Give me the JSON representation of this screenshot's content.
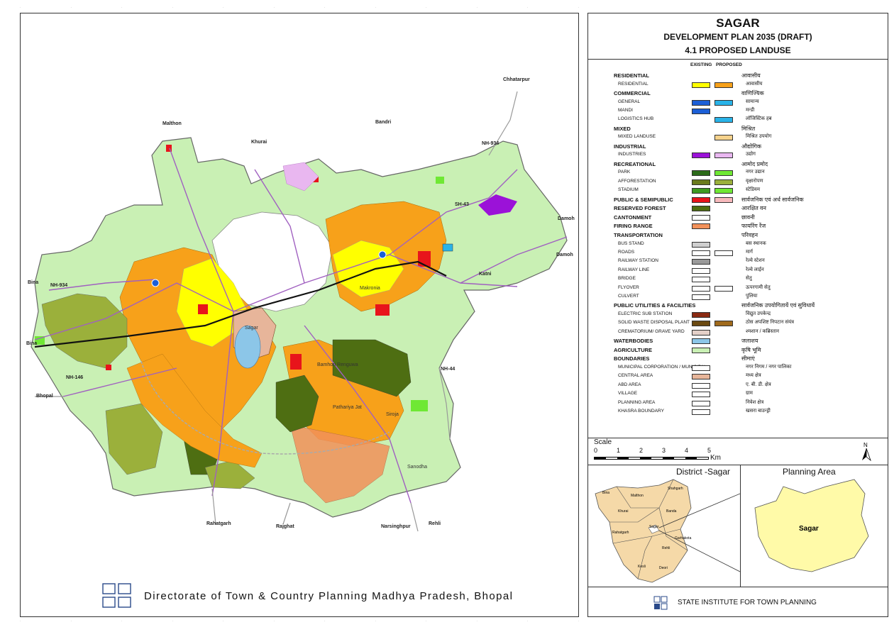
{
  "map_title": {
    "city": "SAGAR",
    "plan": "DEVELOPMENT PLAN 2035 (DRAFT)",
    "sheet": "4.1 PROPOSED LANDUSE"
  },
  "legend_header": {
    "existing": "EXISTING",
    "proposed": "PROPOSED"
  },
  "legend": [
    {
      "en": "RESIDENTIAL",
      "hi": "आवासीय",
      "heading": true
    },
    {
      "en": "RESIDENTIAL",
      "hi": "आवासीय",
      "existing": "#ffff00",
      "proposed": "#f7a11a"
    },
    {
      "en": "COMMERCIAL",
      "hi": "वाणिज्यिक",
      "heading": true
    },
    {
      "en": "GENERAL",
      "hi": "सामान्य",
      "existing": "#1c5fd6",
      "proposed": "#29b3e8"
    },
    {
      "en": "MANDI",
      "hi": "मन्डी",
      "existing": "#1c5fd6"
    },
    {
      "en": "LOGISTICS HUB",
      "hi": "लॉजिस्टिक हब",
      "proposed": "#29b3e8"
    },
    {
      "en": "MIXED",
      "hi": "मिश्रित",
      "heading": true
    },
    {
      "en": "MIXED LANDUSE",
      "hi": "मिश्रित उपयोग",
      "proposed": "#f5d28c"
    },
    {
      "en": "INDUSTRIAL",
      "hi": "औद्योगिक",
      "heading": true
    },
    {
      "en": "INDUSTRIES",
      "hi": "उद्योग",
      "existing": "#9b12d8",
      "proposed": "#e9b7f0"
    },
    {
      "en": "RECREATIONAL",
      "hi": "आमोद प्रमोद",
      "heading": true
    },
    {
      "en": "PARK",
      "hi": "नगर उद्यान",
      "existing": "#2c6b1a",
      "proposed": "#6fe834"
    },
    {
      "en": "AFFORESTATION",
      "hi": "वृक्षारोपण",
      "existing": "#6a7a1d",
      "proposed": "#9bb03b"
    },
    {
      "en": "STADIUM",
      "hi": "स्टेडियम",
      "existing": "#3e9a22",
      "proposed": "#6fe834"
    },
    {
      "en": "PUBLIC & SEMIPUBLIC",
      "hi": "सार्वजनिक एवं अर्ध सार्वजनिक",
      "heading": true,
      "existing": "#e8141b",
      "proposed": "#f7b9bc"
    },
    {
      "en": "RESERVED FOREST",
      "hi": "आरक्षित वन",
      "heading": true,
      "existing": "#4e6e12"
    },
    {
      "en": "CANTONMENT",
      "hi": "छावनी",
      "heading": true,
      "existing": "#ffffff"
    },
    {
      "en": "FIRING RANGE",
      "hi": "फायरिंग रेंज",
      "heading": true,
      "existing": "#f2915a"
    },
    {
      "en": "TRANSPORTATION",
      "hi": "परिवहन",
      "heading": true
    },
    {
      "en": "BUS STAND",
      "hi": "बस स्थानक",
      "existing": "#cfcfcf"
    },
    {
      "en": "ROADS",
      "hi": "मार्ग",
      "existing": "#ffffff",
      "proposed": "#ffffff"
    },
    {
      "en": "RAILWAY STATION",
      "hi": "रेल्वे स्टेशन",
      "existing": "#9a9a9a"
    },
    {
      "en": "RAILWAY LINE",
      "hi": "रेल्वे लाईन",
      "existing": "#ffffff"
    },
    {
      "en": "BRIDGE",
      "hi": "सेतु",
      "existing": "#ffffff"
    },
    {
      "en": "FLYOVER",
      "hi": "ऊपरगामी सेतु",
      "existing": "#ffffff",
      "proposed": "#ffffff"
    },
    {
      "en": "CULVERT",
      "hi": "पुलिया",
      "existing": "#ffffff"
    },
    {
      "en": "PUBLIC UTILITIES & FACILITIES",
      "hi": "सार्वजनिक उपयोगितायें एवं सुविधायें",
      "heading": true
    },
    {
      "en": "ELECTRIC SUB STATION",
      "hi": "विद्युत उपकेन्द्र",
      "existing": "#8a2a12"
    },
    {
      "en": "SOLID WASTE DISPOSAL PLANT",
      "hi": "ठोस अपशिष्ट निपटान संयंत्र",
      "existing": "#6b4a12",
      "proposed": "#a06a1c"
    },
    {
      "en": "CREMATORIUM/ GRAVE YARD",
      "hi": "श्मशान / कब्रिस्तान",
      "existing": "#e4d0c8"
    },
    {
      "en": "WATERBODIES",
      "hi": "जलाशय",
      "heading": true,
      "existing": "#8cc6e8"
    },
    {
      "en": "AGRICULTURE",
      "hi": "कृषि भूमि",
      "heading": true,
      "existing": "#c9f0b4"
    },
    {
      "en": "BOUNDARIES",
      "hi": "सीमाएं",
      "heading": true
    },
    {
      "en": "MUNICIPAL CORPORATION / MUNICIPAL",
      "hi": "नगर निगम / नगर पालिका",
      "existing": "#ffffff"
    },
    {
      "en": "CENTRAL AREA",
      "hi": "मध्य क्षेत्र",
      "existing": "#e7b59a"
    },
    {
      "en": "ABD AREA",
      "hi": "ए. बी. डी. क्षेत्र",
      "existing": "#ffffff"
    },
    {
      "en": "VILLAGE",
      "hi": "ग्राम",
      "existing": "#ffffff"
    },
    {
      "en": "PLANNING AREA",
      "hi": "निवेश क्षेत्र",
      "existing": "#ffffff"
    },
    {
      "en": "KHASRA BOUNDARY",
      "hi": "खसरा बाउन्ड्री",
      "existing": "#ffffff"
    }
  ],
  "scale": {
    "label": "Scale",
    "ticks": [
      "0",
      "1",
      "2",
      "3",
      "4",
      "5"
    ],
    "unit": "Km"
  },
  "north": "N",
  "insets": {
    "district_title": "District -Sagar",
    "planning_title": "Planning Area",
    "planning_label": "Sagar",
    "district_labels": [
      "Bina",
      "Malthon",
      "Shahgarh",
      "Khurai",
      "Banda",
      "Rahatgarh",
      "Sagar",
      "Garhakota",
      "Kesli",
      "Deori",
      "Rehli"
    ]
  },
  "footer": {
    "sitp": "STATE INSTITUTE FOR TOWN PLANNING",
    "dtcp": "Directorate of Town & Country Planning Madhya Pradesh, Bhopal"
  },
  "map_labels": {
    "roads": [
      "Bina",
      "Bina",
      "NH-934",
      "NH-146",
      "Bhopal",
      "Damoh",
      "Damoh",
      "Katni",
      "SH-43",
      "NH-934",
      "Chhatarpur",
      "Rajghat",
      "Rahatgarh",
      "Narsinghpur",
      "Rehli",
      "NH-44",
      "Malthon",
      "Khurai",
      "Bandri"
    ],
    "places": [
      "Sagar",
      "Makronia",
      "Siroja",
      "Pathariya Jat",
      "Bamhori Renguwa",
      "Sanodha"
    ]
  },
  "colors": {
    "agriculture": "#c9f0b4",
    "residential_proposed": "#f7a11a",
    "residential_existing": "#ffff00",
    "public": "#e8141b",
    "forest": "#4e6e12",
    "afforestation": "#9bb03b",
    "water": "#8cc6e8",
    "firing_range": "#f2915a",
    "industry": "#9b12d8"
  }
}
